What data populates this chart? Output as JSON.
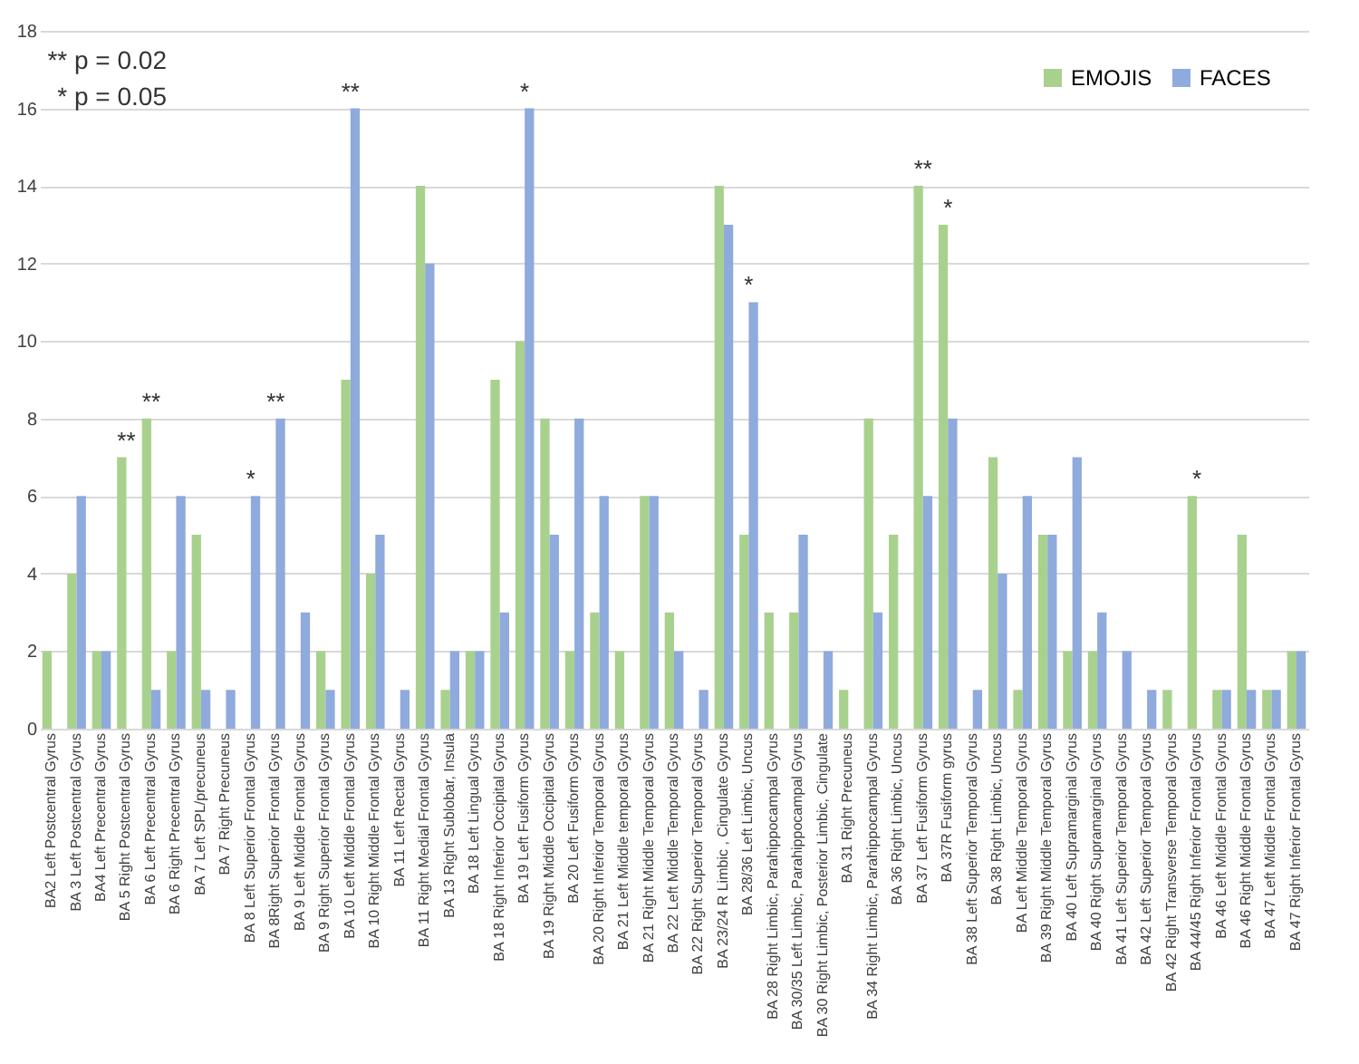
{
  "chart_data": {
    "type": "bar",
    "categories": [
      "BA2 Left Postcentral Gyrus",
      "BA 3 Left Postcentral Gyrus",
      "BA4 Left Precentral Gyrus",
      "BA 5 Right Postcentral Gyrus",
      "BA 6 Left Precentral Gyrus",
      "BA 6 Right Precentral Gyrus",
      "BA 7 Left SPL/precuneus",
      "BA 7 Right Precuneus",
      "BA 8 Left Superior Frontal Gyrus",
      "BA 8Right Superior Frontal Gyrus",
      "BA 9 Left Middle Frontal Gyrus",
      "BA 9 Right Superior Frontal Gyrus",
      "BA 10 Left Middle Frontal Gyrus",
      "BA 10 Right Middle Frontal Gyrus",
      "BA 11 Left Rectal Gyrus",
      "BA 11 Right Medial Frontal Gyrus",
      "BA 13 Right Sublobar, Insula",
      "BA 18 Left Lingual Gyrus",
      "BA 18 Right Inferior Occipital Gyrus",
      "BA 19 Left Fusiform Gyrus",
      "BA 19 Right Middle Occipital Gyrus",
      "BA 20 Left Fusiform Gyrus",
      "BA 20 Right Inferior Temporal Gyrus",
      "BA 21 Left Middle temporal Gyrus",
      "BA 21 Right Middle Temporal Gyrus",
      "BA 22 Left Middle Temporal Gyrus",
      "BA 22 Right Superior Temporal Gyrus",
      "BA 23/24 R Limbic , Cingulate Gyrus",
      "BA 28/36 Left Limbic, Uncus",
      "BA 28 Right Limbic, Parahippocampal Gyrus",
      "BA 30/35 Left Limbic, Parahippocampal Gyrus",
      "BA 30 Right Limbic, Posterior Limbic, Cingulate",
      "BA 31 Right Precuneus",
      "BA 34 Right Limbic, Parahippocampal Gyrus",
      "BA 36 Right Limbic, Uncus",
      "BA 37 Left Fusiform Gyrus",
      "BA 37R Fusiform gyrus",
      "BA 38 Left Superior Temporal Gyrus",
      "BA 38 Right Limbic, Uncus",
      "BA Left Middle Temporal Gyrus",
      "BA 39 Right Middle Temporal Gyrus",
      "BA 40 Left Supramarginal Gyrus",
      "BA 40 Right Supramarginal Gyrus",
      "BA 41 Left Superior Temporal Gyrus",
      "BA 42 Left Superior Temporal Gyrus",
      "BA 42 Right Transverse Temporal Gyrus",
      "BA 44/45 Right Inferior Frontal Gyrus",
      "BA 46 Left Middle Frontal Gyrus",
      "BA 46 Right Middle Frontal Gyrus",
      "BA 47 Left Middle Frontal Gyrus",
      "BA 47 Right Inferior Frontal Gyrus"
    ],
    "series": [
      {
        "name": "EMOJIS",
        "color": "#a9d18e",
        "values": [
          2,
          4,
          2,
          7,
          8,
          2,
          5,
          0,
          0,
          0,
          0,
          2,
          9,
          4,
          0,
          14,
          1,
          2,
          9,
          10,
          8,
          2,
          3,
          2,
          6,
          3,
          0,
          14,
          5,
          3,
          3,
          0,
          1,
          8,
          5,
          14,
          13,
          0,
          7,
          1,
          5,
          2,
          2,
          0,
          0,
          1,
          6,
          1,
          5,
          1,
          2
        ]
      },
      {
        "name": "FACES",
        "color": "#8faadc",
        "values": [
          0,
          6,
          2,
          0,
          1,
          6,
          1,
          1,
          6,
          8,
          3,
          1,
          16,
          5,
          1,
          12,
          2,
          2,
          3,
          16,
          5,
          8,
          6,
          0,
          6,
          2,
          1,
          13,
          11,
          0,
          5,
          2,
          0,
          3,
          0,
          6,
          8,
          1,
          4,
          6,
          5,
          7,
          3,
          2,
          1,
          0,
          0,
          1,
          1,
          1,
          2
        ]
      }
    ],
    "ylim": [
      0,
      18
    ],
    "yticks": [
      0,
      2,
      4,
      6,
      8,
      10,
      12,
      14,
      16,
      18
    ],
    "grid": "y",
    "legend": "top right",
    "annotations": [
      "** p = 0.02",
      "* p = 0.05",
      {
        "text": "**",
        "x": "BA 5 Right Postcentral Gyrus",
        "y": 7
      },
      {
        "text": "**",
        "x": "BA 6 Left Precentral Gyrus",
        "y": 8
      },
      {
        "text": "*",
        "x": "BA 8 Left Superior Frontal Gyrus",
        "y": 6
      },
      {
        "text": "**",
        "x": "BA 8Right Superior Frontal Gyrus",
        "y": 8
      },
      {
        "text": "**",
        "x": "BA 10 Left Middle Frontal Gyrus",
        "y": 16
      },
      {
        "text": "*",
        "x": "BA 19 Left Fusiform Gyrus",
        "y": 16
      },
      {
        "text": "*",
        "x": "BA 28/36 Left Limbic, Uncus",
        "y": 11
      },
      {
        "text": "**",
        "x": "BA 37 Left Fusiform Gyrus",
        "y": 14
      },
      {
        "text": "*",
        "x": "BA 37R Fusiform gyrus",
        "y": 13
      },
      {
        "text": "*",
        "x": "BA 44/45 Right Inferior Frontal Gyrus",
        "y": 6
      }
    ]
  }
}
